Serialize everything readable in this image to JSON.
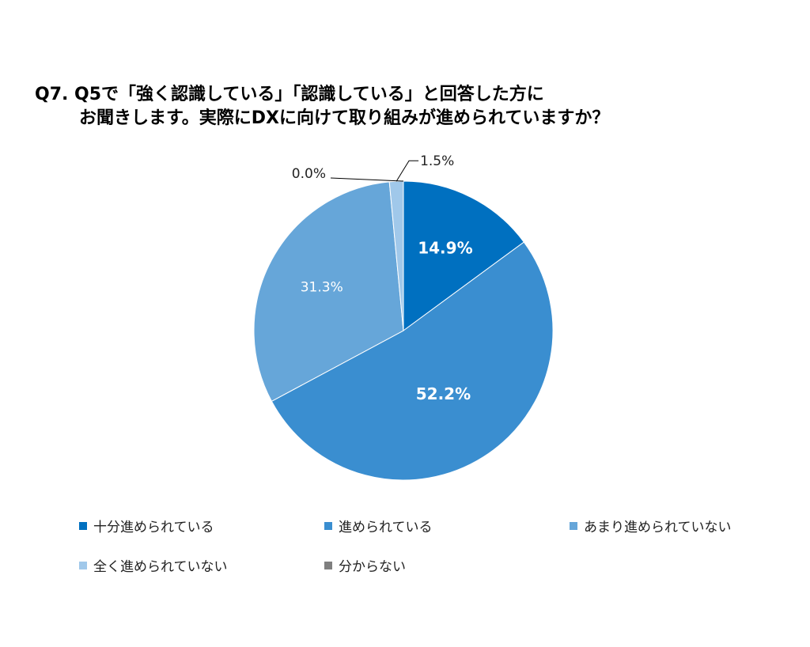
{
  "title": {
    "line1": "Q7. Q5で「強く認識している」「認識している」と回答した方に",
    "line2": "お聞きします。実際にDXに向けて取り組みが進められていますか？"
  },
  "chart_data": {
    "type": "pie",
    "unit": "%",
    "slices": [
      {
        "label": "十分進められている",
        "value": 14.9,
        "display": "14.9%",
        "color": "#0070c0"
      },
      {
        "label": "進められている",
        "value": 52.2,
        "display": "52.2%",
        "color": "#3a8ed0"
      },
      {
        "label": "あまり進められていない",
        "value": 31.3,
        "display": "31.3%",
        "color": "#66a6d9"
      },
      {
        "label": "全く進められていない",
        "value": 1.5,
        "display": "1.5%",
        "color": "#a0c8ea"
      },
      {
        "label": "分からない",
        "value": 0.0,
        "display": "0.0%",
        "color": "#7f7f7f"
      }
    ],
    "legend_position": "bottom"
  }
}
